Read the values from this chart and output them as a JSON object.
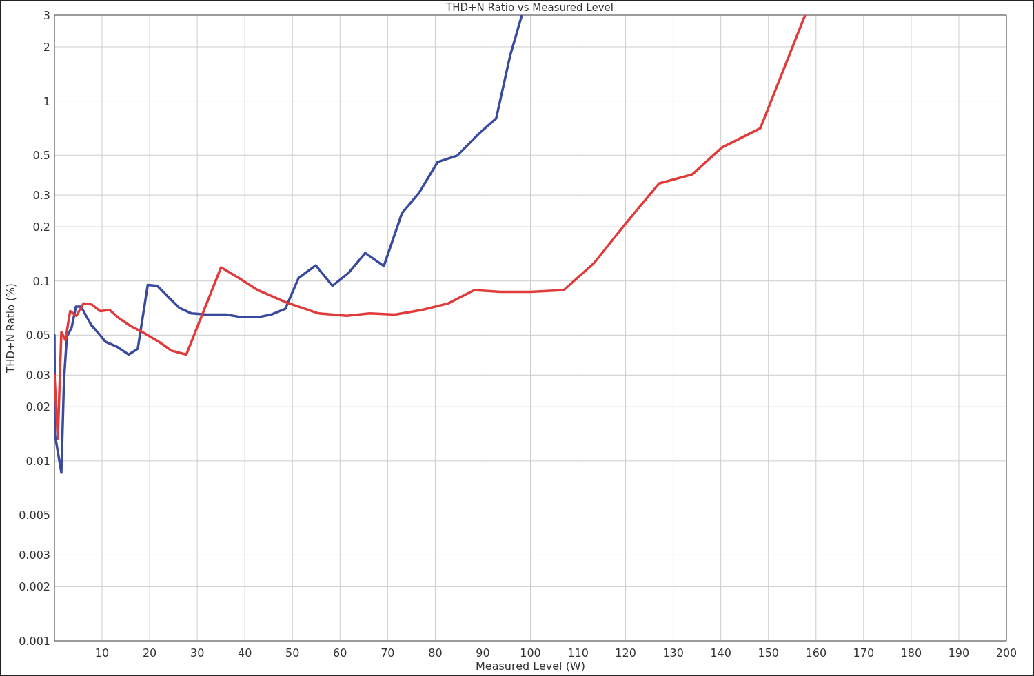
{
  "chart_data": {
    "type": "line",
    "title": "THD+N Ratio vs Measured Level",
    "xlabel": "Measured Level (W)",
    "ylabel": "THD+N Ratio (%)",
    "log": "y",
    "grid": true,
    "line_style": "solid",
    "xlim": [
      0,
      200
    ],
    "xticks": [
      {
        "value": 0,
        "label": null
      },
      10,
      20,
      30,
      40,
      50,
      60,
      70,
      80,
      90,
      100,
      110,
      120,
      130,
      140,
      150,
      160,
      170,
      180,
      190,
      200
    ],
    "ylim": [
      0.001,
      3
    ],
    "yticks": [
      0.001,
      0.002,
      0.003,
      0.005,
      0.01,
      0.02,
      0.03,
      0.05,
      0.1,
      0.2,
      0.3,
      0.5,
      1,
      2,
      3
    ],
    "series": [
      {
        "color": "#3a4a9c",
        "x": [
          0,
          0.1,
          1.45,
          2,
          2.6,
          3.6,
          4.5,
          5.6,
          7.7,
          9.6,
          10.7,
          13.2,
          15.6,
          17.5,
          19.6,
          21.6,
          23.8,
          26.2,
          28.8,
          32,
          36.1,
          39.2,
          42.9,
          45.5,
          48.5,
          51.3,
          54.9,
          58.4,
          61.8,
          65.3,
          69.2,
          73,
          76.6,
          80.5,
          84.6,
          89.2,
          92.8,
          95.7,
          98.2
        ],
        "values": [
          0.05,
          0.014,
          0.0086,
          0.028,
          0.049,
          0.055,
          0.072,
          0.072,
          0.057,
          0.05,
          0.046,
          0.043,
          0.039,
          0.042,
          0.095,
          0.094,
          0.082,
          0.071,
          0.066,
          0.065,
          0.065,
          0.063,
          0.063,
          0.065,
          0.07,
          0.104,
          0.122,
          0.094,
          0.111,
          0.143,
          0.121,
          0.238,
          0.309,
          0.458,
          0.497,
          0.66,
          0.8,
          1.77,
          3
        ]
      },
      {
        "color": "#e03a3a",
        "x": [
          0,
          0.7,
          1.45,
          2.3,
          3.3,
          4.6,
          6.1,
          7.8,
          9.6,
          11.6,
          13.6,
          16.1,
          18.5,
          21.9,
          24.6,
          27.7,
          35,
          38.7,
          42.7,
          48.7,
          55.5,
          61.4,
          66.2,
          71.5,
          77.2,
          82.7,
          88.2,
          93.7,
          100,
          107,
          113.4,
          119.9,
          127,
          134,
          140.2,
          148.3,
          157.7
        ],
        "values": [
          0.03,
          0.0133,
          0.052,
          0.047,
          0.068,
          0.064,
          0.075,
          0.074,
          0.068,
          0.069,
          0.062,
          0.056,
          0.052,
          0.046,
          0.041,
          0.039,
          0.119,
          0.104,
          0.089,
          0.076,
          0.066,
          0.064,
          0.066,
          0.065,
          0.069,
          0.075,
          0.089,
          0.087,
          0.087,
          0.089,
          0.126,
          0.207,
          0.348,
          0.391,
          0.551,
          0.706,
          3
        ]
      }
    ]
  }
}
